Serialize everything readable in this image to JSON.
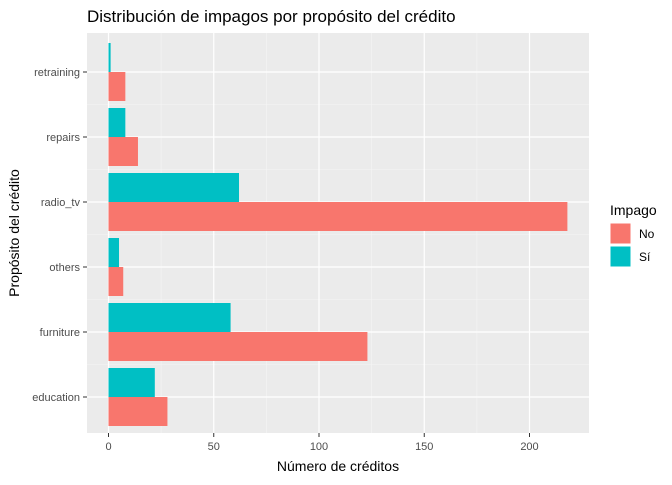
{
  "chart_data": {
    "type": "bar",
    "orientation": "horizontal",
    "title": "Distribución de impagos por propósito del crédito",
    "xlabel": "Número de créditos",
    "ylabel": "Propósito del crédito",
    "categories": [
      "education",
      "furniture",
      "others",
      "radio_tv",
      "repairs",
      "retraining"
    ],
    "series": [
      {
        "name": "No",
        "color": "#F8766D",
        "values": [
          28,
          123,
          7,
          218,
          14,
          8
        ]
      },
      {
        "name": "Sí",
        "color": "#00BFC4",
        "values": [
          22,
          58,
          5,
          62,
          8,
          1
        ]
      }
    ],
    "xlim": [
      0,
      225
    ],
    "x_ticks": [
      0,
      50,
      100,
      150,
      200
    ],
    "grid": true,
    "legend": {
      "title": "Impago",
      "position": "right"
    }
  }
}
